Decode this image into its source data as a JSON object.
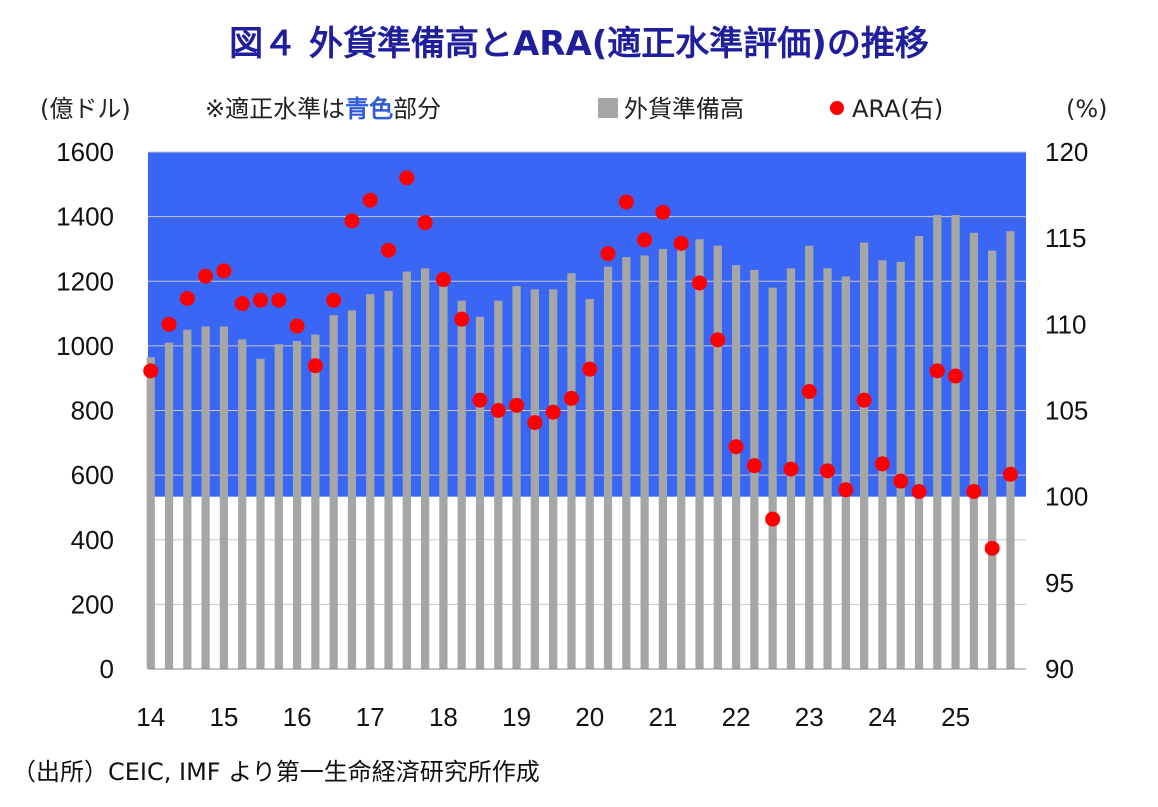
{
  "title": "図４ 外貨準備高とARA(適正水準評価)の推移",
  "source": "（出所）CEIC, IMF より第一生命経済研究所作成",
  "note": {
    "prefix": "※適正水準は",
    "highlight": "青色",
    "suffix": "部分"
  },
  "colors": {
    "band": "#3a66f5",
    "bar": "#a6a6a6",
    "dot": "#ff0000",
    "title": "#1f1f9e",
    "highlight": "#2f5bd8"
  },
  "chart_data": {
    "type": "bar",
    "title": "図４ 外貨準備高とARA(適正水準評価)の推移",
    "left_axis": {
      "unit": "(億ドル)",
      "min": 0,
      "max": 1600,
      "ticks": [
        "0",
        "200",
        "400",
        "600",
        "800",
        "1000",
        "1200",
        "1400",
        "1600"
      ]
    },
    "right_axis": {
      "unit": "(%)",
      "min": 90,
      "max": 120,
      "ticks": [
        "90",
        "95",
        "100",
        "105",
        "110",
        "115",
        "120"
      ]
    },
    "x_labels": [
      "14",
      "15",
      "16",
      "17",
      "18",
      "19",
      "20",
      "21",
      "22",
      "23",
      "24",
      "25"
    ],
    "adequate_band": {
      "from_percent": 100,
      "to_percent": 120
    },
    "legend": {
      "placement": "top",
      "bar_label": "外貨準備高",
      "dot_label": "ARA(右)"
    },
    "grid": true,
    "bars": {
      "name": "外貨準備高",
      "values": [
        965,
        1010,
        1050,
        1060,
        1060,
        1020,
        960,
        1005,
        1015,
        1035,
        1095,
        1110,
        1160,
        1170,
        1230,
        1240,
        1205,
        1140,
        1090,
        1140,
        1185,
        1175,
        1175,
        1225,
        1145,
        1245,
        1275,
        1280,
        1300,
        1315,
        1330,
        1310,
        1250,
        1235,
        1180,
        1240,
        1310,
        1240,
        1215,
        1320,
        1265,
        1260,
        1340,
        1405,
        1405,
        1350,
        1295,
        1355
      ]
    },
    "dots": {
      "name": "ARA(右)",
      "values": [
        107.3,
        110.0,
        111.5,
        112.8,
        113.1,
        111.2,
        111.4,
        111.4,
        109.9,
        107.6,
        111.4,
        116.0,
        117.2,
        114.3,
        118.5,
        115.9,
        112.6,
        110.3,
        105.6,
        105.0,
        105.3,
        104.3,
        104.9,
        105.7,
        107.4,
        114.1,
        117.1,
        114.9,
        116.5,
        114.7,
        112.4,
        109.1,
        102.9,
        101.8,
        98.7,
        101.6,
        106.1,
        101.5,
        100.4,
        105.6,
        101.9,
        100.9,
        100.3,
        107.3,
        107.0,
        100.3,
        97.0,
        101.3
      ]
    }
  }
}
